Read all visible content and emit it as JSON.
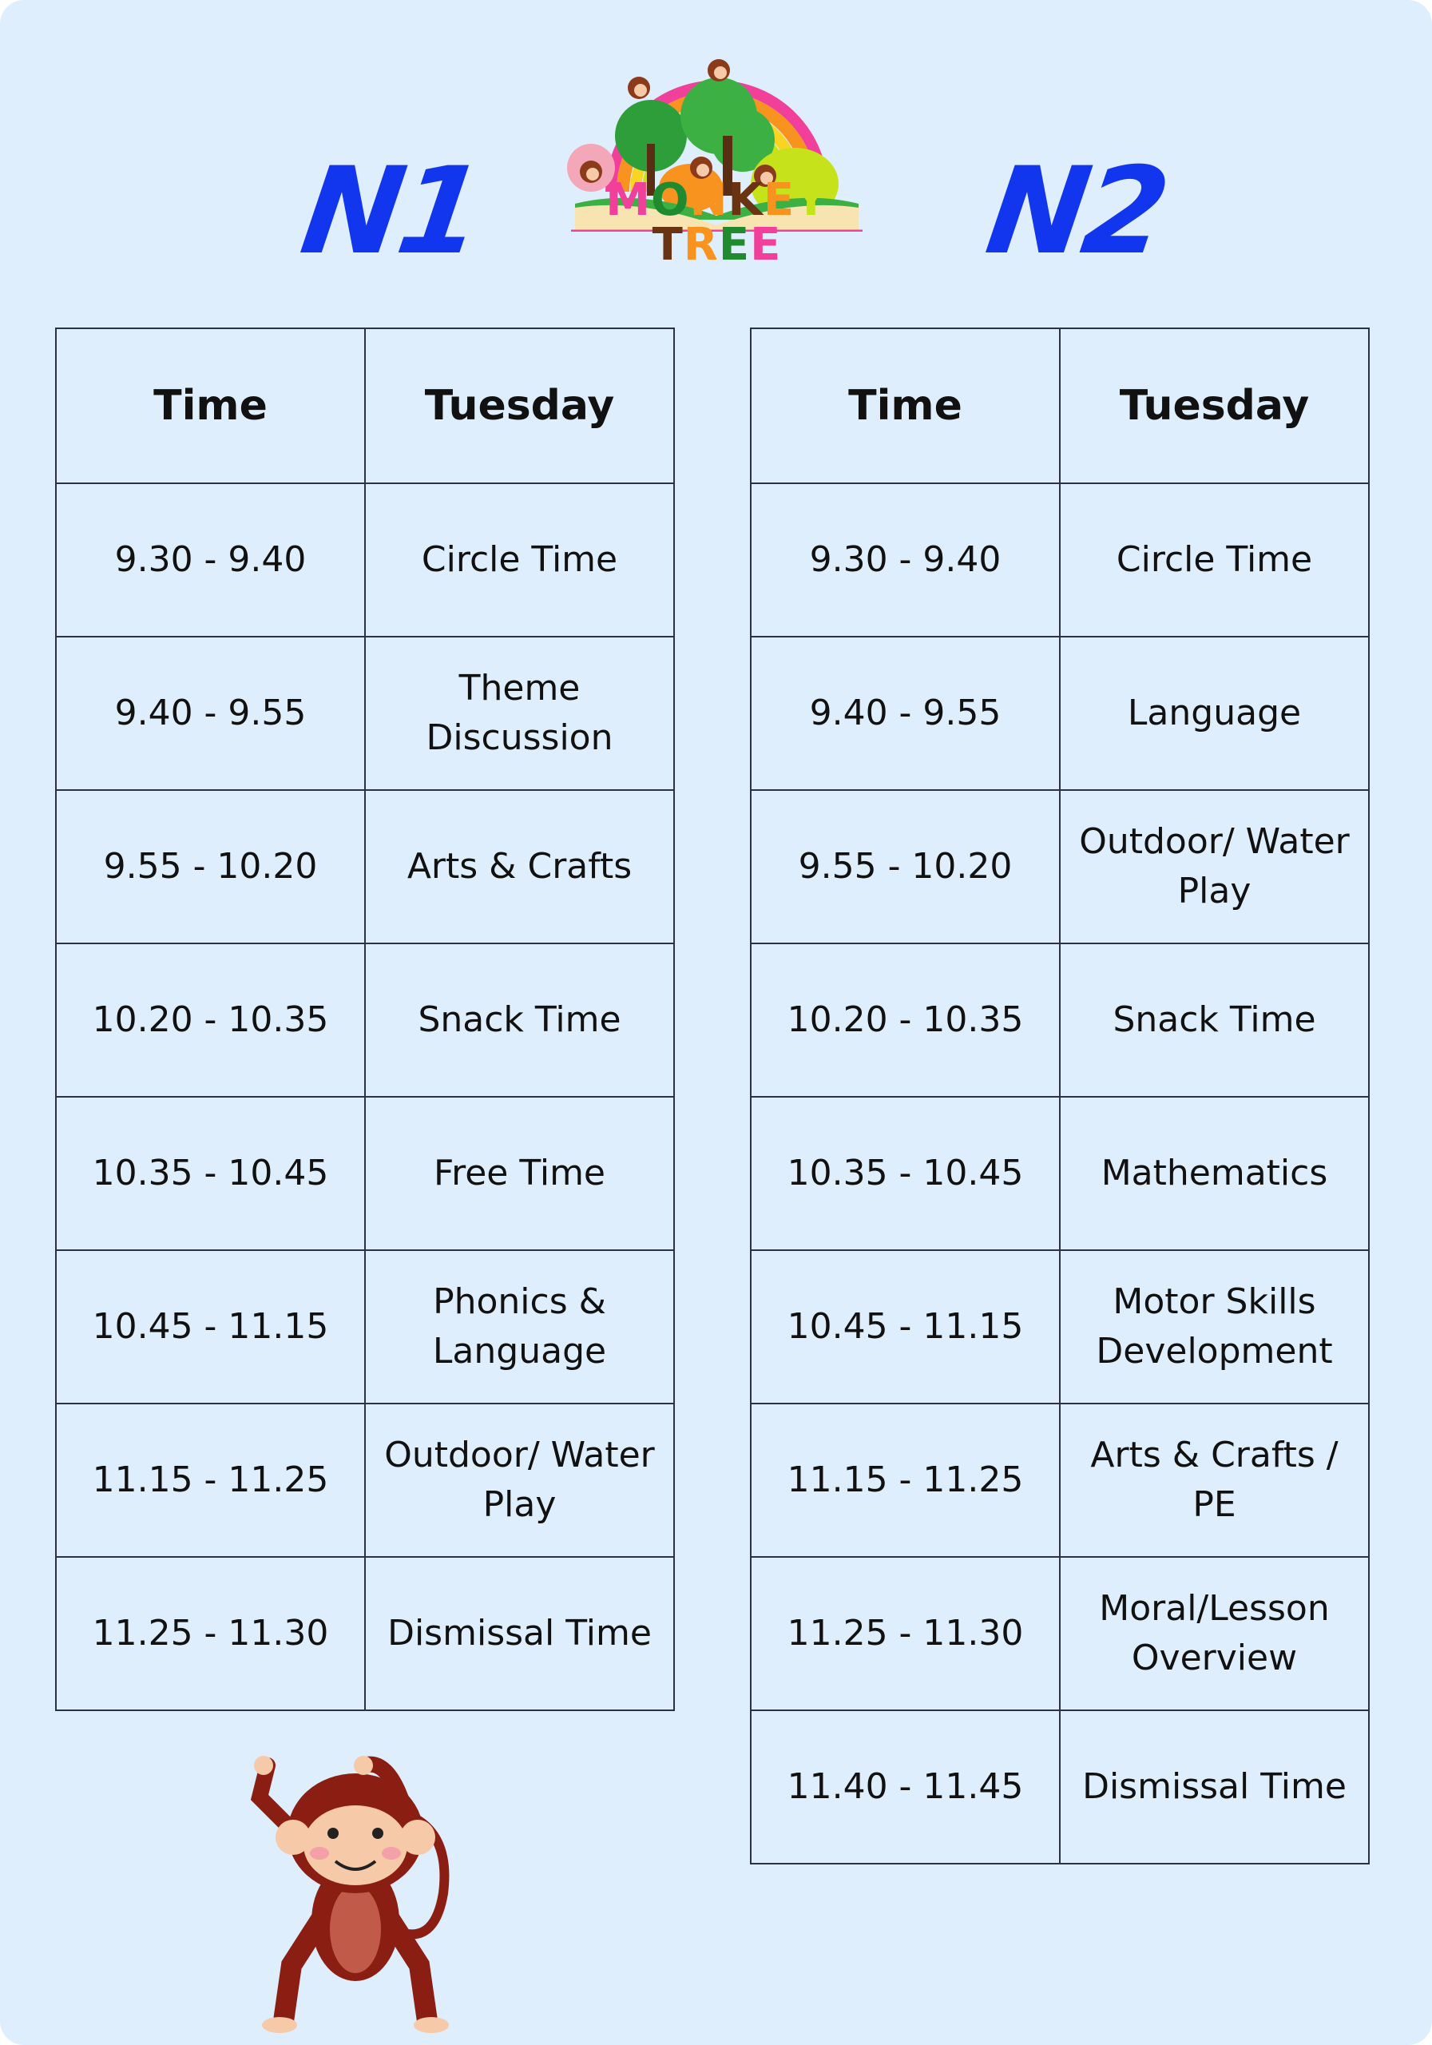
{
  "brand": {
    "name": "MONKEY TREE",
    "letter_colors": [
      "#f0409a",
      "#1f8a2e",
      "#f7931e",
      "#6a3412",
      "#f7931e",
      "#c6e21a",
      "#ffffff",
      "#6a3412",
      "#f7931e",
      "#1f8a2e",
      "#f0409a"
    ]
  },
  "title_color": "#1236ee",
  "n1": {
    "title": "N1",
    "headers": [
      "Time",
      "Tuesday"
    ],
    "rows": [
      {
        "time": "9.30 - 9.40",
        "activity": "Circle Time"
      },
      {
        "time": "9.40 - 9.55",
        "activity": "Theme Discussion"
      },
      {
        "time": "9.55 - 10.20",
        "activity": "Arts & Crafts"
      },
      {
        "time": "10.20 - 10.35",
        "activity": "Snack Time"
      },
      {
        "time": "10.35 - 10.45",
        "activity": "Free Time"
      },
      {
        "time": "10.45 - 11.15",
        "activity": "Phonics & Language"
      },
      {
        "time": "11.15 - 11.25",
        "activity": "Outdoor/ Water Play"
      },
      {
        "time": "11.25 - 11.30",
        "activity": "Dismissal Time"
      }
    ]
  },
  "n2": {
    "title": "N2",
    "headers": [
      "Time",
      "Tuesday"
    ],
    "rows": [
      {
        "time": "9.30 - 9.40",
        "activity": "Circle Time"
      },
      {
        "time": "9.40 - 9.55",
        "activity": "Language"
      },
      {
        "time": "9.55 - 10.20",
        "activity": "Outdoor/ Water Play"
      },
      {
        "time": "10.20 - 10.35",
        "activity": "Snack Time"
      },
      {
        "time": "10.35 - 10.45",
        "activity": "Mathematics"
      },
      {
        "time": "10.45 - 11.15",
        "activity": "Motor Skills Development"
      },
      {
        "time": "11.15 - 11.25",
        "activity": "Arts & Crafts / PE"
      },
      {
        "time": "11.25 - 11.30",
        "activity": "Moral/Lesson Overview"
      },
      {
        "time": "11.40 - 11.45",
        "activity": "Dismissal Time"
      }
    ]
  }
}
